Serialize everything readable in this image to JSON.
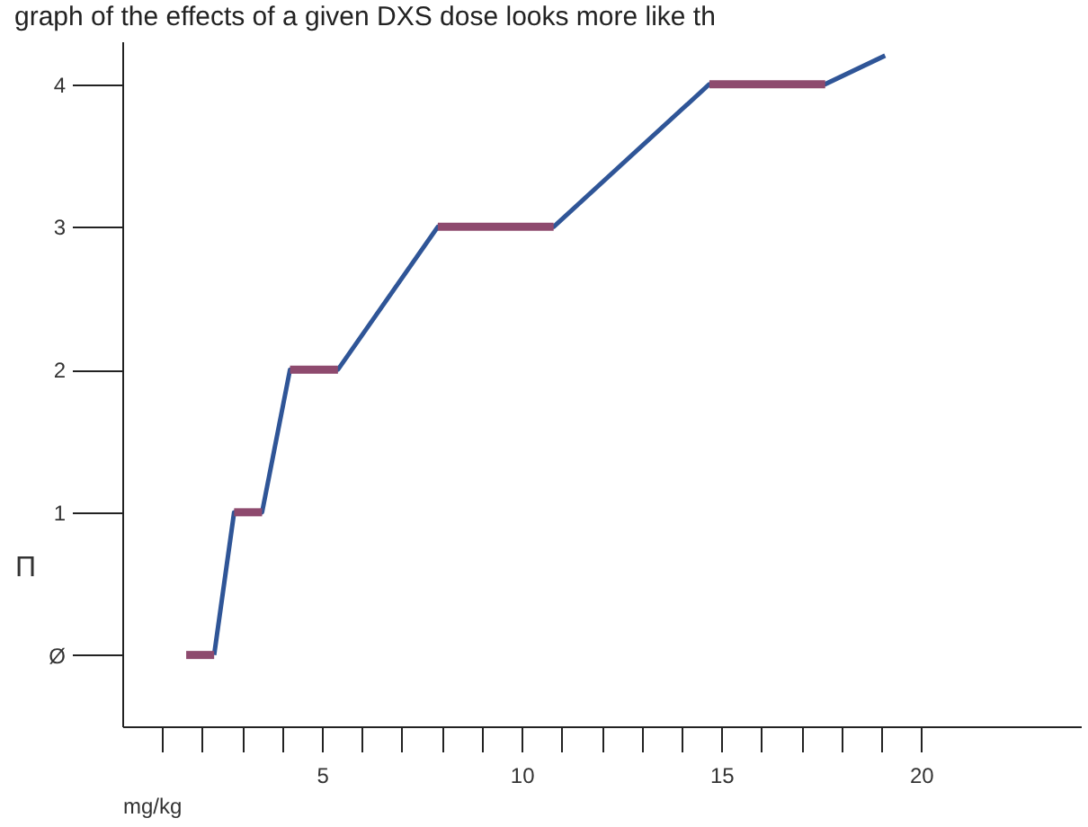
{
  "chart_data": {
    "type": "line",
    "title": "graph of the effects of a given DXS dose looks more like th",
    "xlabel": "mg/kg",
    "ylabel": "Π",
    "xlim": [
      0,
      24
    ],
    "ylim": [
      -0.5,
      4.3
    ],
    "xticks": [
      {
        "value": 1,
        "label": null
      },
      {
        "value": 2,
        "label": null
      },
      {
        "value": 3,
        "label": null
      },
      {
        "value": 4,
        "label": null
      },
      5,
      {
        "value": 6,
        "label": null
      },
      {
        "value": 7,
        "label": null
      },
      {
        "value": 8,
        "label": null
      },
      {
        "value": 9,
        "label": null
      },
      10,
      {
        "value": 11,
        "label": null
      },
      {
        "value": 12,
        "label": null
      },
      {
        "value": 13,
        "label": null
      },
      {
        "value": 14,
        "label": null
      },
      15,
      {
        "value": 16,
        "label": null
      },
      {
        "value": 17,
        "label": null
      },
      {
        "value": 18,
        "label": null
      },
      {
        "value": 19,
        "label": null
      },
      20
    ],
    "yticks": [
      {
        "value": 0,
        "label": "Ø"
      },
      1,
      2,
      3,
      4
    ],
    "grid": false,
    "line_style": "solid",
    "marker": "none",
    "series": [
      {
        "color": "#2f5597",
        "x": [
          2.3,
          2.8,
          3.5,
          4.2,
          5.4,
          7.9,
          10.8,
          14.7,
          17.6,
          19.1
        ],
        "values": [
          0,
          1,
          1,
          2,
          2,
          3,
          3,
          4,
          4,
          4.2
        ]
      },
      {
        "color": "#8e4a6e",
        "x": [
          1.6,
          2.3
        ],
        "values": [
          0,
          0
        ]
      },
      {
        "color": "#8e4a6e",
        "x": [
          2.8,
          3.5
        ],
        "values": [
          1,
          1
        ]
      },
      {
        "color": "#8e4a6e",
        "x": [
          4.2,
          5.4
        ],
        "values": [
          2,
          2
        ]
      },
      {
        "color": "#8e4a6e",
        "x": [
          7.9,
          10.8
        ],
        "values": [
          3,
          3
        ]
      },
      {
        "color": "#8e4a6e",
        "x": [
          14.7,
          17.6
        ],
        "values": [
          4,
          4
        ]
      }
    ]
  }
}
